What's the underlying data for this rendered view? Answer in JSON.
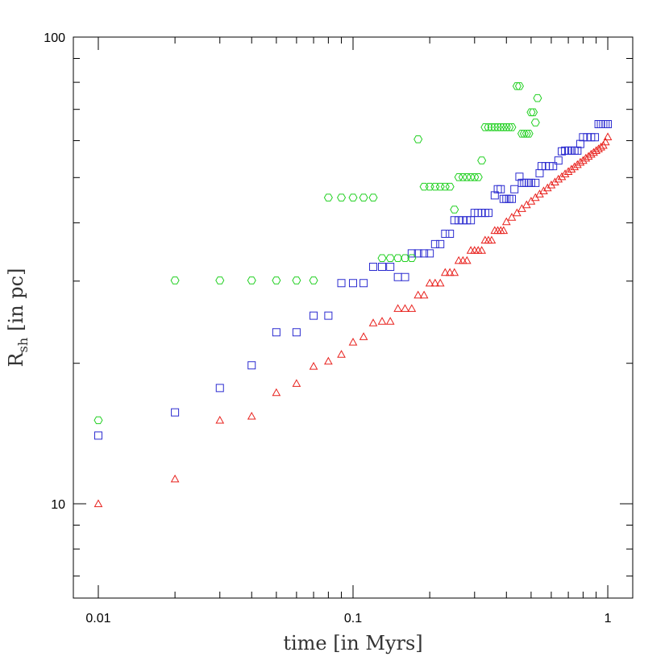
{
  "chart_data": {
    "type": "scatter",
    "xlabel": "time  [in Myrs]",
    "ylabel": {
      "main": "R",
      "sub": "sh",
      "rest": "[in pc]"
    },
    "xlog": true,
    "ylog": true,
    "xlim": [
      0.00798,
      1.253
    ],
    "ylim": [
      6.28,
      100
    ],
    "xticks": [
      0.01,
      0.1,
      1
    ],
    "yticks": [
      10,
      100
    ],
    "xminorticks": [
      0.02,
      0.03,
      0.04,
      0.05,
      0.06,
      0.07,
      0.08,
      0.09,
      0.2,
      0.3,
      0.4,
      0.5,
      0.6,
      0.7,
      0.8,
      0.9
    ],
    "yminorticks": [
      7,
      8,
      9,
      20,
      30,
      40,
      50,
      60,
      70,
      80,
      90
    ],
    "series": [
      {
        "marker": "triangle",
        "color": "#e8201c",
        "x": [
          0.01,
          0.02,
          0.03,
          0.04,
          0.05,
          0.06,
          0.07,
          0.08,
          0.09,
          0.1,
          0.11,
          0.12,
          0.13,
          0.14,
          0.15,
          0.16,
          0.17,
          0.18,
          0.19,
          0.2,
          0.21,
          0.22,
          0.23,
          0.24,
          0.25,
          0.26,
          0.27,
          0.28,
          0.29,
          0.3,
          0.31,
          0.32,
          0.33,
          0.34,
          0.35,
          0.36,
          0.37,
          0.38,
          0.39,
          0.4,
          0.42,
          0.44,
          0.46,
          0.48,
          0.5,
          0.52,
          0.54,
          0.56,
          0.58,
          0.6,
          0.62,
          0.64,
          0.66,
          0.68,
          0.7,
          0.72,
          0.74,
          0.76,
          0.78,
          0.8,
          0.82,
          0.84,
          0.86,
          0.88,
          0.9,
          0.92,
          0.94,
          0.96,
          0.98,
          1.0
        ],
        "values": [
          10,
          11.3,
          15.1,
          15.4,
          17.3,
          18.1,
          19.7,
          20.2,
          20.9,
          22.2,
          22.8,
          24.4,
          24.6,
          24.6,
          26.2,
          26.2,
          26.2,
          28.0,
          28.0,
          29.7,
          29.7,
          29.7,
          31.3,
          31.3,
          31.3,
          33.2,
          33.2,
          33.2,
          34.9,
          34.9,
          34.9,
          34.9,
          36.7,
          36.7,
          36.7,
          38.5,
          38.5,
          38.5,
          38.5,
          40.2,
          41.1,
          42.0,
          42.9,
          43.7,
          44.5,
          45.3,
          46.1,
          46.8,
          47.5,
          48.2,
          48.9,
          49.6,
          50.2,
          50.9,
          51.5,
          52.1,
          52.7,
          53.3,
          53.9,
          54.4,
          55.0,
          55.5,
          56.1,
          56.6,
          57.1,
          57.6,
          58.1,
          58.6,
          59.6,
          61.1
        ]
      },
      {
        "marker": "square",
        "color": "#2b2bd0",
        "x": [
          0.01,
          0.02,
          0.03,
          0.04,
          0.05,
          0.06,
          0.07,
          0.08,
          0.09,
          0.1,
          0.11,
          0.12,
          0.13,
          0.14,
          0.15,
          0.16,
          0.17,
          0.18,
          0.19,
          0.2,
          0.21,
          0.22,
          0.23,
          0.24,
          0.25,
          0.26,
          0.27,
          0.28,
          0.29,
          0.3,
          0.31,
          0.32,
          0.33,
          0.34,
          0.36,
          0.37,
          0.38,
          0.39,
          0.4,
          0.41,
          0.42,
          0.43,
          0.45,
          0.46,
          0.47,
          0.48,
          0.49,
          0.5,
          0.52,
          0.54,
          0.55,
          0.57,
          0.59,
          0.61,
          0.64,
          0.66,
          0.68,
          0.7,
          0.72,
          0.74,
          0.76,
          0.78,
          0.8,
          0.83,
          0.86,
          0.89,
          0.92,
          0.94,
          0.96,
          0.98,
          1.0
        ],
        "values": [
          14.0,
          15.7,
          17.7,
          19.8,
          23.3,
          23.3,
          25.3,
          25.3,
          29.7,
          29.7,
          29.7,
          32.2,
          32.2,
          32.2,
          30.6,
          30.6,
          34.4,
          34.4,
          34.4,
          34.4,
          36.0,
          36.0,
          37.9,
          37.9,
          40.5,
          40.5,
          40.5,
          40.5,
          40.5,
          42.0,
          42.0,
          42.0,
          42.0,
          42.0,
          45.8,
          47.2,
          47.2,
          45.0,
          45.0,
          45.0,
          45.0,
          47.2,
          50.2,
          48.7,
          48.7,
          48.7,
          48.7,
          48.7,
          48.7,
          51.1,
          52.9,
          52.9,
          52.9,
          52.9,
          54.4,
          56.9,
          57.1,
          57.1,
          57.1,
          57.1,
          57.1,
          59.0,
          61.0,
          61.0,
          61.0,
          61.0,
          65.1,
          65.1,
          65.1,
          65.1,
          65.1
        ]
      },
      {
        "marker": "hexagon",
        "color": "#22d022",
        "x": [
          0.01,
          0.02,
          0.03,
          0.04,
          0.05,
          0.06,
          0.07,
          0.08,
          0.09,
          0.1,
          0.11,
          0.12,
          0.13,
          0.14,
          0.15,
          0.16,
          0.17,
          0.18,
          0.19,
          0.2,
          0.21,
          0.22,
          0.23,
          0.24,
          0.25,
          0.26,
          0.27,
          0.28,
          0.29,
          0.3,
          0.31,
          0.32,
          0.33,
          0.34,
          0.35,
          0.36,
          0.37,
          0.38,
          0.39,
          0.4,
          0.41,
          0.42,
          0.44,
          0.45,
          0.46,
          0.47,
          0.48,
          0.49,
          0.5,
          0.51,
          0.52,
          0.53
        ],
        "values": [
          15.1,
          30.1,
          30.1,
          30.1,
          30.1,
          30.1,
          30.1,
          45.3,
          45.3,
          45.3,
          45.3,
          45.3,
          33.6,
          33.6,
          33.6,
          33.6,
          33.6,
          60.4,
          47.8,
          47.8,
          47.8,
          47.8,
          47.8,
          47.8,
          42.7,
          50.1,
          50.1,
          50.1,
          50.1,
          50.1,
          50.1,
          54.4,
          64.1,
          64.1,
          64.1,
          64.1,
          64.1,
          64.1,
          64.1,
          64.1,
          64.1,
          64.1,
          78.5,
          78.5,
          62.1,
          62.1,
          62.1,
          62.1,
          69.0,
          69.0,
          65.6,
          74.0
        ]
      }
    ]
  }
}
